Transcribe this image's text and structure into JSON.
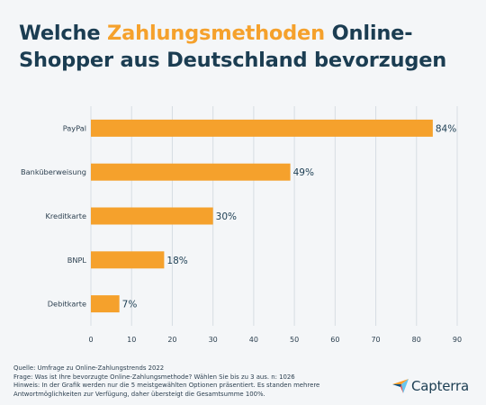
{
  "header": {
    "title_part1": "Welche ",
    "title_highlight": "Zahlungsmethoden",
    "title_part2": " Online-Shopper aus Deutschland bevorzugen"
  },
  "colors": {
    "bar": "#f5a12c",
    "title": "#1b3d52",
    "highlight": "#f5a12c",
    "background": "#f4f6f8",
    "gridline": "#d7dde3"
  },
  "chart_data": {
    "type": "bar",
    "orientation": "horizontal",
    "categories": [
      "PayPal",
      "Banküberweisung",
      "Kreditkarte",
      "BNPL",
      "Debitkarte"
    ],
    "values": [
      84,
      49,
      30,
      18,
      7
    ],
    "value_labels": [
      "84%",
      "49%",
      "30%",
      "18%",
      "7%"
    ],
    "xlim": [
      0,
      90
    ],
    "x_ticks": [
      0,
      10,
      20,
      30,
      40,
      50,
      60,
      70,
      80,
      90
    ],
    "grid": true
  },
  "footer": {
    "source": "Quelle: Umfrage zu Online-Zahlungstrends 2022",
    "question": "Frage: Was ist Ihre bevorzugte Online-Zahlungsmethode? Wählen Sie bis zu 3 aus. n: 1026",
    "note_line1": "Hinweis: In der Grafik werden nur die 5 meistgewählten Optionen präsentiert. Es standen mehrere",
    "note_line2": "Antwortmöglichkeiten zur Verfügung, daher übersteigt die Gesamtsumme 100%."
  },
  "logo": {
    "text": "Capterra",
    "icon": "capterra-arrow-icon"
  }
}
